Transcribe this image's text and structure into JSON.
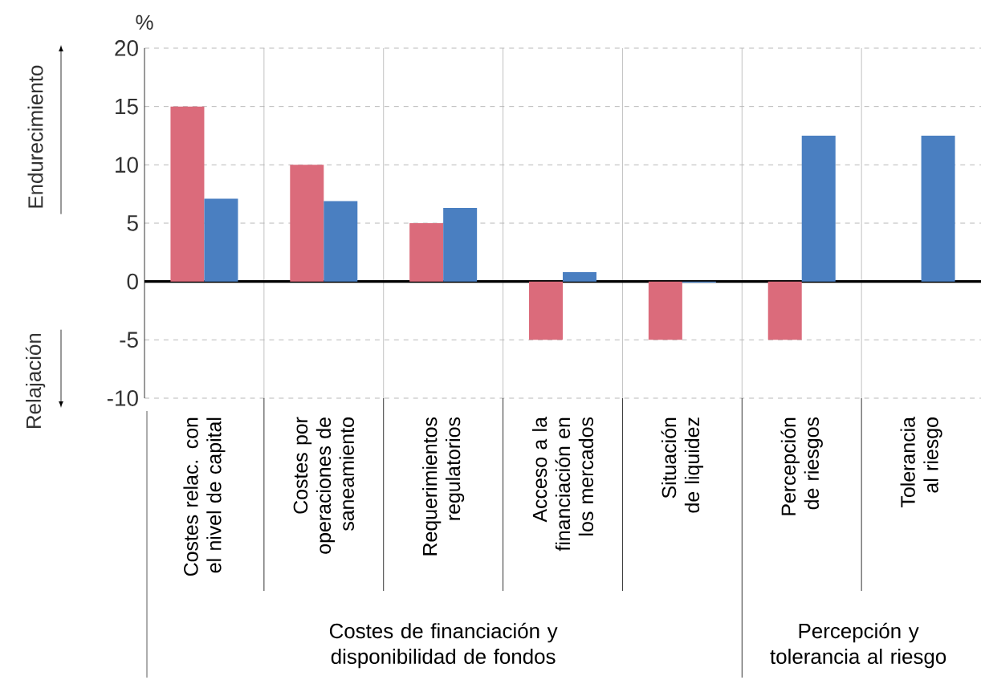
{
  "chart_data": {
    "type": "bar",
    "ylabel": "%",
    "categories": [
      "Costes relac. con el nivel de capital",
      "Costes por operaciones de saneamiento",
      "Requerimientos regulatorios",
      "Acceso a la financiación en los mercados",
      "Situación de liquidez",
      "Percepción de riesgos",
      "Tolerancia al riesgo"
    ],
    "series": [
      {
        "color": "#db6b7b",
        "values": [
          15,
          10,
          5,
          -5,
          -5,
          -5,
          null
        ]
      },
      {
        "color": "#4a7fc1",
        "values": [
          7.1,
          6.9,
          6.3,
          0.8,
          -0.1,
          12.5,
          12.5
        ]
      }
    ],
    "ylim": [
      -10,
      20
    ],
    "yticks": [
      -10,
      -5,
      0,
      5,
      10,
      15,
      20
    ],
    "grid": "y",
    "annotations": [
      "Endurecimiento",
      "Relajación",
      "Costes de financiación y disponibilidad de fondos",
      "Percepción y tolerancia al riesgo"
    ]
  }
}
